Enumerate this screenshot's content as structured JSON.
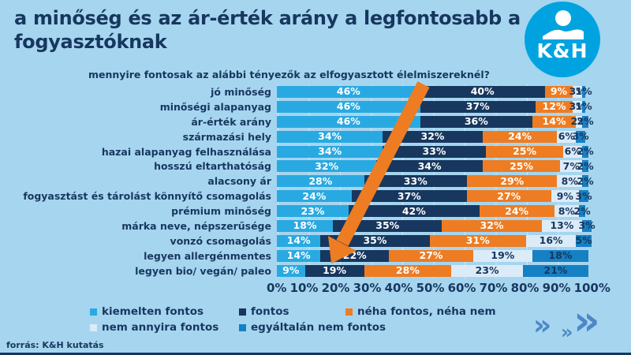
{
  "header": {
    "title": "a minőség és az ár-érték arány a legfontosabb a fogyasztóknak",
    "subtitle": "mennyire fontosak az alábbi tényezők az elfogyasztott élelmiszereknél?"
  },
  "logo": {
    "text": "K&H"
  },
  "source": "forrás: K&H kutatás",
  "colors": {
    "background": "#a6d5ef",
    "navy": "#17375e",
    "orange": "#ee7c22",
    "light_blue": "#29a9e1",
    "pale_blue": "#dcebf8",
    "medium_blue": "#1680c4",
    "logo_blue": "#00a3e0",
    "chevron": "#4c88c6"
  },
  "chart_data": {
    "type": "bar",
    "orientation": "horizontal",
    "stacked": true,
    "title": "mennyire fontosak az alábbi tényezők az elfogyasztott élelmiszereknél?",
    "categories": [
      "jó minőség",
      "minőségi alapanyag",
      "ár-érték arány",
      "származási hely",
      "hazai alapanyag felhasználása",
      "hosszú eltarthatóság",
      "alacsony ár",
      "fogyasztást és tárolást könnyítő csomagolás",
      "prémium minőség",
      "márka neve, népszerűsége",
      "vonzó csomagolás",
      "legyen allergénmentes",
      "legyen bio/ vegán/ paleo"
    ],
    "series": [
      {
        "name": "kiemelten fontos",
        "color": "#29a9e1",
        "label_color": "#ffffff",
        "values": [
          46,
          46,
          46,
          34,
          34,
          32,
          28,
          24,
          23,
          18,
          14,
          14,
          9
        ]
      },
      {
        "name": "fontos",
        "color": "#17375e",
        "label_color": "#ffffff",
        "values": [
          40,
          37,
          36,
          32,
          33,
          34,
          33,
          37,
          42,
          35,
          35,
          22,
          19
        ]
      },
      {
        "name": "néha fontos, néha nem",
        "color": "#ee7c22",
        "label_color": "#ffffff",
        "values": [
          9,
          12,
          14,
          24,
          25,
          25,
          29,
          27,
          24,
          32,
          31,
          27,
          28
        ]
      },
      {
        "name": "nem annyira fontos",
        "color": "#dcebf8",
        "label_color": "#17375e",
        "values": [
          3,
          3,
          2,
          6,
          6,
          7,
          8,
          9,
          8,
          13,
          16,
          19,
          23
        ]
      },
      {
        "name": "egyáltalán nem fontos",
        "color": "#1680c4",
        "label_color": "#17375e",
        "values": [
          1,
          1,
          2,
          3,
          2,
          2,
          2,
          3,
          2,
          3,
          5,
          18,
          21
        ]
      }
    ],
    "x_axis_ticks": [
      "0%",
      "10%",
      "20%",
      "30%",
      "40%",
      "50%",
      "60%",
      "70%",
      "80%",
      "90%",
      "100%"
    ],
    "xlim": [
      0,
      100
    ],
    "unit": "%",
    "grid": true,
    "legend_position": "bottom",
    "annotation": "orange diagonal arrow highlighting the decreasing share of 'kiemelten fontos' from top to bottom"
  }
}
